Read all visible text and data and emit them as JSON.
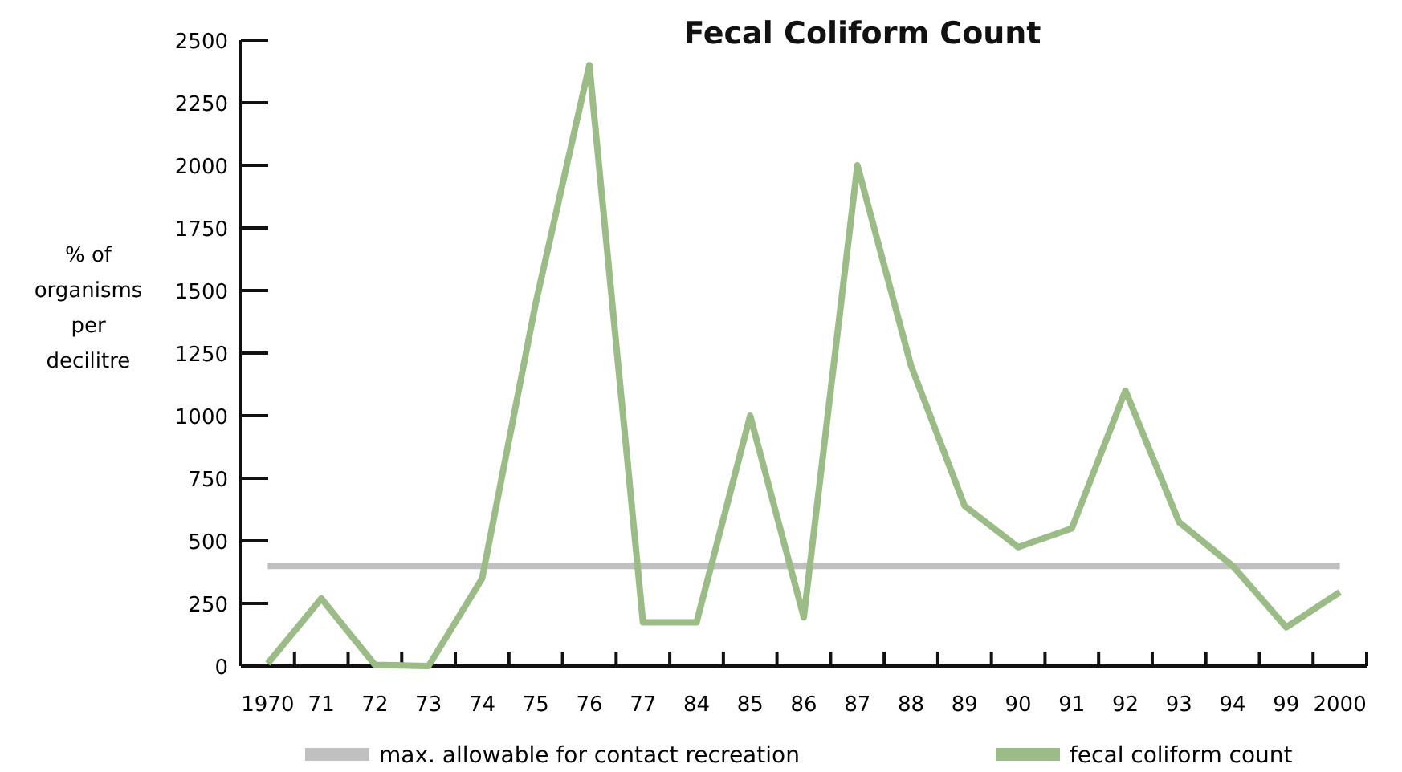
{
  "chart_data": {
    "type": "line",
    "title": "Fecal Coliform Count",
    "ylabel": "% of organisms per decilitre",
    "categories": [
      "1970",
      "71",
      "72",
      "73",
      "74",
      "75",
      "76",
      "77",
      "84",
      "85",
      "86",
      "87",
      "88",
      "89",
      "90",
      "91",
      "92",
      "93",
      "94",
      "99",
      "2000"
    ],
    "series": [
      {
        "name": "max. allowable for contact recreation",
        "color": "#c0c0c0",
        "values": [
          400,
          400,
          400,
          400,
          400,
          400,
          400,
          400,
          400,
          400,
          400,
          400,
          400,
          400,
          400,
          400,
          400,
          400,
          400,
          400,
          400
        ]
      },
      {
        "name": "fecal coliform count",
        "color": "#9bbb87",
        "values": [
          10,
          270,
          5,
          0,
          350,
          1450,
          2400,
          175,
          175,
          1000,
          195,
          2000,
          1200,
          640,
          475,
          550,
          1100,
          575,
          400,
          155,
          295
        ]
      }
    ],
    "ylim": [
      0,
      2500
    ],
    "yticks": [
      0,
      250,
      500,
      750,
      1000,
      1250,
      1500,
      1750,
      2000,
      2250,
      2500
    ],
    "grid": false,
    "legend": "bottom",
    "marker": "none",
    "line_style": "solid"
  }
}
